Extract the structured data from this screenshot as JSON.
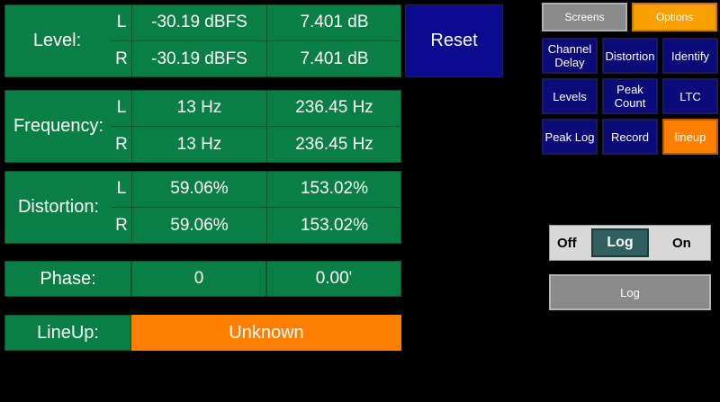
{
  "level": {
    "label": "Level:",
    "rows": [
      {
        "ch": "L",
        "v1": "-30.19 dBFS",
        "v2": "7.401 dB"
      },
      {
        "ch": "R",
        "v1": "-30.19 dBFS",
        "v2": "7.401 dB"
      }
    ]
  },
  "frequency": {
    "label": "Frequency:",
    "rows": [
      {
        "ch": "L",
        "v1": "13 Hz",
        "v2": "236.45 Hz"
      },
      {
        "ch": "R",
        "v1": "13 Hz",
        "v2": "236.45 Hz"
      }
    ]
  },
  "distortion": {
    "label": "Distortion:",
    "rows": [
      {
        "ch": "L",
        "v1": "59.06%",
        "v2": "153.02%"
      },
      {
        "ch": "R",
        "v1": "59.06%",
        "v2": "153.02%"
      }
    ]
  },
  "phase": {
    "label": "Phase:",
    "v1": "0",
    "v2": "0.00'"
  },
  "lineup": {
    "label": "LineUp:",
    "value": "Unknown"
  },
  "reset_label": "Reset",
  "tabs": {
    "screens": "Screens",
    "options": "Options"
  },
  "nav": [
    {
      "label": "Channel Delay"
    },
    {
      "label": "Distortion"
    },
    {
      "label": "Identify"
    },
    {
      "label": "Levels"
    },
    {
      "label": "Peak Count"
    },
    {
      "label": "LTC"
    },
    {
      "label": "Peak Log"
    },
    {
      "label": "Record"
    },
    {
      "label": "lineup"
    }
  ],
  "toggle": {
    "off": "Off",
    "on": "On",
    "state": "Log"
  },
  "log_button": "Log",
  "colors": {
    "green": "#0a7f45",
    "orange": "#ff8000",
    "navy": "#0b0b7a",
    "gray": "#8a8a8a"
  }
}
